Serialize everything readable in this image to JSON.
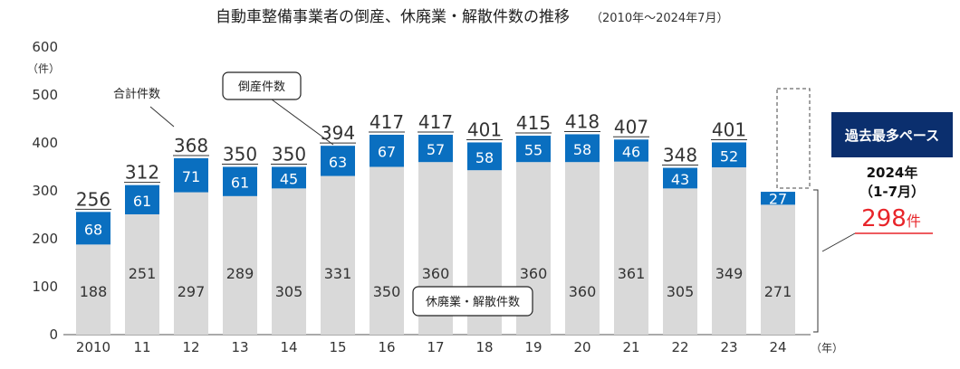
{
  "title": "自動車整備事業者の倒産、休廃業・解散件数の推移",
  "subtitle": "（2010年～2024年7月）",
  "colors": {
    "bankruptcy": "#0a6fc0",
    "closure": "#d9d9d9",
    "badge": "#0b2f6e",
    "highlight": "#e8252a"
  },
  "chart_data": {
    "type": "bar",
    "stacked": true,
    "categories": [
      "2010",
      "11",
      "12",
      "13",
      "14",
      "15",
      "16",
      "17",
      "18",
      "19",
      "20",
      "21",
      "22",
      "23",
      "24"
    ],
    "x_unit": "（年）",
    "y_unit": "（件）",
    "ylim": [
      0,
      600
    ],
    "yticks": [
      0,
      100,
      200,
      300,
      400,
      500,
      600
    ],
    "grid": false,
    "series": [
      {
        "name": "休廃業・解散件数",
        "values": [
          188,
          251,
          297,
          289,
          305,
          331,
          350,
          360,
          343,
          360,
          360,
          361,
          305,
          349,
          271
        ]
      },
      {
        "name": "倒産件数",
        "values": [
          68,
          61,
          71,
          61,
          45,
          63,
          67,
          57,
          58,
          55,
          58,
          46,
          43,
          52,
          27
        ]
      }
    ],
    "totals": [
      256,
      312,
      368,
      350,
      350,
      394,
      417,
      417,
      401,
      415,
      418,
      407,
      348,
      401,
      298
    ],
    "total_label_name": "合計件数",
    "annotation": {
      "badge": "過去最多ペース",
      "period_line1": "2024年",
      "period_line2": "（1-7月）",
      "value": "298",
      "value_unit": "件"
    }
  }
}
